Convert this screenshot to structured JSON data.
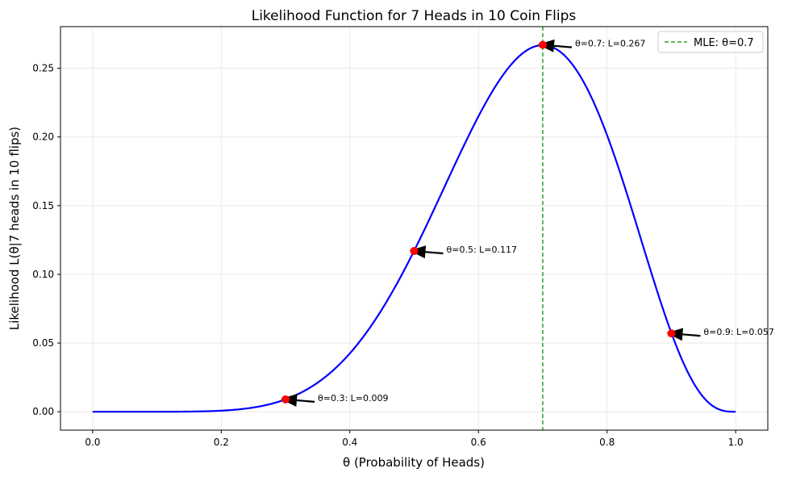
{
  "chart_data": {
    "type": "line",
    "title": "Likelihood Function for 7 Heads in 10 Coin Flips",
    "xlabel": "θ (Probability of Heads)",
    "ylabel": "Likelihood L(θ|7 heads in 10 flips)",
    "xlim": [
      -0.05,
      1.05
    ],
    "ylim": [
      -0.0134,
      0.2803
    ],
    "grid": true,
    "x_ticks": [
      0.0,
      0.2,
      0.4,
      0.6,
      0.8,
      1.0
    ],
    "x_tick_labels": [
      "0.0",
      "0.2",
      "0.4",
      "0.6",
      "0.8",
      "1.0"
    ],
    "y_ticks": [
      0.0,
      0.05,
      0.1,
      0.15,
      0.2,
      0.25
    ],
    "y_tick_labels": [
      "0.00",
      "0.05",
      "0.10",
      "0.15",
      "0.20",
      "0.25"
    ],
    "series": [
      {
        "name": "",
        "color": "#0000ff",
        "x": [
          0.0,
          0.05,
          0.1,
          0.15,
          0.2,
          0.25,
          0.3,
          0.35,
          0.4,
          0.45,
          0.5,
          0.55,
          0.6,
          0.65,
          0.7,
          0.75,
          0.8,
          0.85,
          0.9,
          0.95,
          1.0
        ],
        "y": [
          0.0,
          1e-07,
          8.7e-06,
          9.16e-05,
          0.000786,
          0.00309,
          0.009002,
          0.02162,
          0.04247,
          0.0746,
          0.1172,
          0.1665,
          0.215,
          0.2522,
          0.2668,
          0.2503,
          0.2013,
          0.1298,
          0.0574,
          0.01048,
          0.0
        ]
      }
    ],
    "markers": {
      "color": "#ff0000",
      "points": [
        {
          "x": 0.3,
          "y": 0.009,
          "label": "θ=0.3: L=0.009"
        },
        {
          "x": 0.5,
          "y": 0.117,
          "label": "θ=0.5: L=0.117"
        },
        {
          "x": 0.7,
          "y": 0.267,
          "label": "θ=0.7: L=0.267"
        },
        {
          "x": 0.9,
          "y": 0.057,
          "label": "θ=0.9: L=0.057"
        }
      ]
    },
    "vline": {
      "x": 0.7,
      "color": "#2ca02c",
      "style": "dashed",
      "label": "MLE: θ=0.7"
    },
    "legend": {
      "position": "top-right"
    }
  }
}
